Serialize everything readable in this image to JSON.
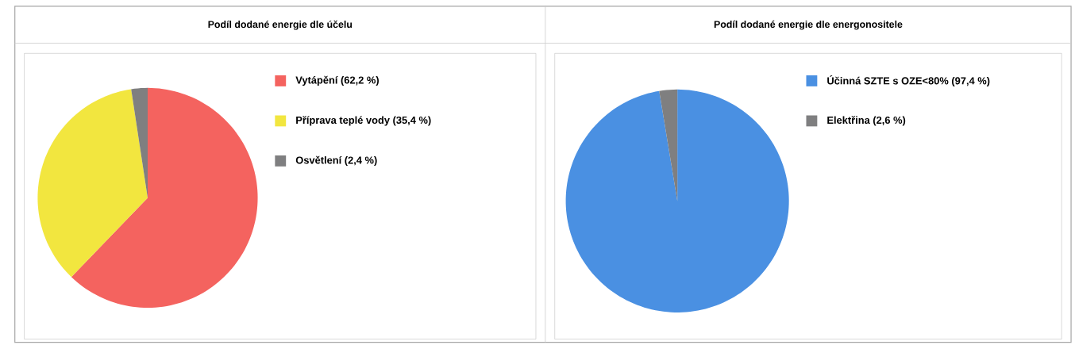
{
  "chart_data": [
    {
      "type": "pie",
      "title": "Podíl dodané energie dle účelu",
      "categories": [
        "Vytápění (62,2 %)",
        "Příprava teplé vody (35,4 %)",
        "Osvětlení (2,4 %)"
      ],
      "values": [
        62.2,
        35.4,
        2.4
      ],
      "colors": [
        "#f4635f",
        "#f2e63f",
        "#7f7f80"
      ],
      "legend": "right"
    },
    {
      "type": "pie",
      "title": "Podíl dodané energie dle energonositele",
      "categories": [
        "Účinná SZTE s OZE<80% (97,4 %)",
        "Elektřina (2,6 %)"
      ],
      "values": [
        97.4,
        2.6
      ],
      "colors": [
        "#4a90e2",
        "#7f7f80"
      ],
      "legend": "right"
    }
  ]
}
